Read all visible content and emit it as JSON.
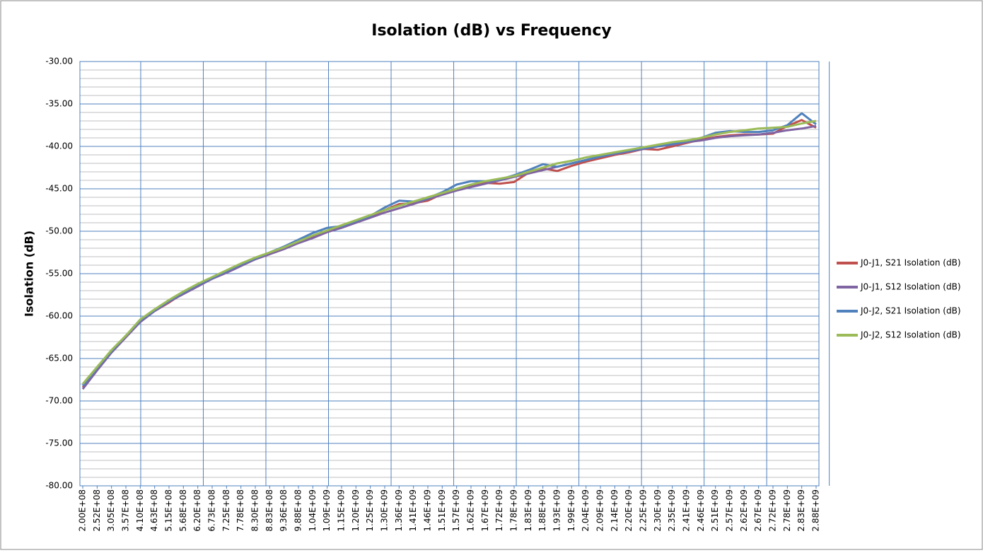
{
  "chart_data": {
    "type": "line",
    "title": "Isolation (dB) vs Frequency",
    "y_label": "Isolation (dB)",
    "categories": [
      "2.00E+08",
      "2.52E+08",
      "3.05E+08",
      "3.57E+08",
      "4.10E+08",
      "4.63E+08",
      "5.15E+08",
      "5.68E+08",
      "6.20E+08",
      "6.73E+08",
      "7.25E+08",
      "7.78E+08",
      "8.30E+08",
      "8.83E+08",
      "9.36E+08",
      "9.88E+08",
      "1.04E+09",
      "1.09E+09",
      "1.15E+09",
      "1.20E+09",
      "1.25E+09",
      "1.30E+09",
      "1.36E+09",
      "1.41E+09",
      "1.46E+09",
      "1.51E+09",
      "1.57E+09",
      "1.62E+09",
      "1.67E+09",
      "1.72E+09",
      "1.78E+09",
      "1.83E+09",
      "1.88E+09",
      "1.93E+09",
      "1.99E+09",
      "2.04E+09",
      "2.09E+09",
      "2.14E+09",
      "2.20E+09",
      "2.25E+09",
      "2.30E+09",
      "2.35E+09",
      "2.41E+09",
      "2.46E+09",
      "2.51E+09",
      "2.57E+09",
      "2.62E+09",
      "2.67E+09",
      "2.72E+09",
      "2.78E+09",
      "2.83E+09",
      "2.88E+09"
    ],
    "series": [
      {
        "name": "J0-J1, S21 Isolation (dB)",
        "color": "#c0504d",
        "values": [
          -68.4,
          -66.3,
          -64.2,
          -62.4,
          -60.6,
          -59.4,
          -58.4,
          -57.3,
          -56.4,
          -55.6,
          -54.8,
          -54.0,
          -53.3,
          -52.7,
          -52.0,
          -51.3,
          -50.7,
          -50.1,
          -49.5,
          -48.9,
          -48.2,
          -47.5,
          -46.8,
          -46.7,
          -46.4,
          -45.6,
          -45.1,
          -44.7,
          -44.3,
          -44.4,
          -44.2,
          -43.1,
          -42.6,
          -42.9,
          -42.3,
          -41.8,
          -41.4,
          -41.0,
          -40.7,
          -40.3,
          -40.4,
          -40.0,
          -39.6,
          -39.2,
          -38.9,
          -38.7,
          -38.6,
          -38.6,
          -38.5,
          -37.6,
          -36.9,
          -37.8
        ]
      },
      {
        "name": "J0-J1, S12 Isolation (dB)",
        "color": "#8064a2",
        "values": [
          -68.6,
          -66.4,
          -64.3,
          -62.5,
          -60.7,
          -59.4,
          -58.3,
          -57.4,
          -56.5,
          -55.6,
          -54.9,
          -54.1,
          -53.3,
          -52.7,
          -52.1,
          -51.4,
          -50.8,
          -50.1,
          -49.6,
          -49.0,
          -48.4,
          -47.8,
          -47.3,
          -46.8,
          -46.2,
          -45.7,
          -45.2,
          -44.8,
          -44.4,
          -44.0,
          -43.6,
          -43.2,
          -42.8,
          -42.4,
          -42.0,
          -41.6,
          -41.2,
          -40.9,
          -40.6,
          -40.3,
          -40.0,
          -39.8,
          -39.5,
          -39.3,
          -39.0,
          -38.8,
          -38.7,
          -38.6,
          -38.4,
          -38.1,
          -37.9,
          -37.6
        ]
      },
      {
        "name": "J0-J2, S21 Isolation (dB)",
        "color": "#4f81bd",
        "values": [
          -68.2,
          -66.1,
          -64.1,
          -62.3,
          -60.5,
          -59.3,
          -58.2,
          -57.2,
          -56.3,
          -55.5,
          -54.7,
          -53.9,
          -53.2,
          -52.5,
          -51.8,
          -51.0,
          -50.2,
          -49.6,
          -49.4,
          -48.8,
          -48.2,
          -47.2,
          -46.4,
          -46.5,
          -46.1,
          -45.4,
          -44.5,
          -44.1,
          -44.1,
          -43.9,
          -43.4,
          -42.8,
          -42.1,
          -42.4,
          -42.0,
          -41.6,
          -41.2,
          -40.8,
          -40.5,
          -40.2,
          -40.0,
          -39.7,
          -39.4,
          -39.0,
          -38.4,
          -38.2,
          -38.3,
          -38.3,
          -38.1,
          -37.5,
          -36.1,
          -37.4
        ]
      },
      {
        "name": "J0-J2, S12 Isolation (dB)",
        "color": "#9bbb59",
        "values": [
          -68.0,
          -66.0,
          -64.0,
          -62.3,
          -60.4,
          -59.2,
          -58.1,
          -57.1,
          -56.2,
          -55.4,
          -54.6,
          -53.8,
          -53.1,
          -52.5,
          -51.9,
          -51.2,
          -50.5,
          -49.9,
          -49.3,
          -48.7,
          -48.1,
          -47.5,
          -47.0,
          -46.5,
          -46.0,
          -45.5,
          -45.0,
          -44.5,
          -44.1,
          -43.8,
          -43.5,
          -43.0,
          -42.5,
          -42.0,
          -41.7,
          -41.3,
          -41.0,
          -40.7,
          -40.4,
          -40.1,
          -39.8,
          -39.5,
          -39.3,
          -39.0,
          -38.6,
          -38.3,
          -38.1,
          -37.9,
          -37.8,
          -37.7,
          -37.3,
          -37.0
        ]
      }
    ],
    "ylim": [
      -80,
      -30
    ],
    "yticks": [
      {
        "value": -80,
        "label": "-80.00"
      },
      {
        "value": -75,
        "label": "-75.00"
      },
      {
        "value": -70,
        "label": "-70.00"
      },
      {
        "value": -65,
        "label": "-65.00"
      },
      {
        "value": -60,
        "label": "-60.00"
      },
      {
        "value": -55,
        "label": "-55.00"
      },
      {
        "value": -50,
        "label": "-50.00"
      },
      {
        "value": -45,
        "label": "-45.00"
      },
      {
        "value": -40,
        "label": "-40.00"
      },
      {
        "value": -35,
        "label": "-35.00"
      },
      {
        "value": -30,
        "label": "-30.00"
      }
    ],
    "grid": true,
    "legend": "right"
  }
}
